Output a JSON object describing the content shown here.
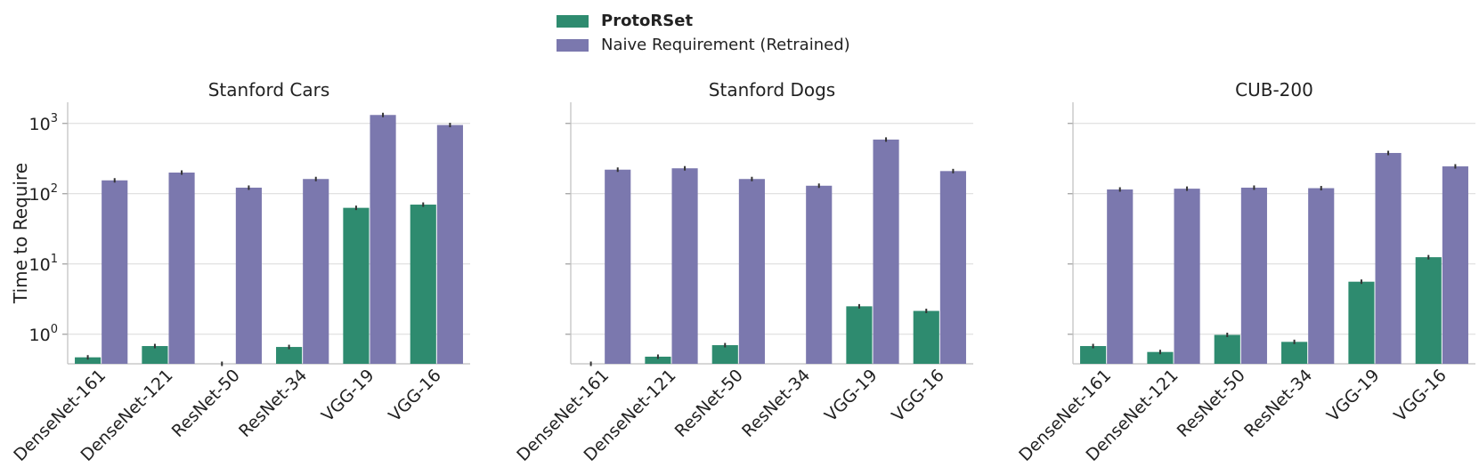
{
  "colors": {
    "protorset": "#2e8b6f",
    "naive": "#7b78ae",
    "grid": "#d9d9d9",
    "axis": "#bfbfbf",
    "errbar": "#333333"
  },
  "legend": [
    {
      "label": "ProtoRSet",
      "color": "#2e8b6f",
      "bold": true
    },
    {
      "label": "Naive Requirement (Retrained)",
      "color": "#7b78ae",
      "bold": false
    }
  ],
  "chart_data": [
    {
      "type": "bar",
      "title": "Stanford Cars",
      "ylabel": "Time to Require",
      "yscale": "log",
      "ylim": [
        0.38,
        2000
      ],
      "yticks": [
        1,
        10,
        100,
        1000
      ],
      "categories": [
        "DenseNet-161",
        "DenseNet-121",
        "ResNet-50",
        "ResNet-34",
        "VGG-19",
        "VGG-16"
      ],
      "series": [
        {
          "name": "ProtoRSet",
          "values": [
            0.47,
            0.68,
            0.38,
            0.66,
            63,
            70
          ]
        },
        {
          "name": "Naive Requirement (Retrained)",
          "values": [
            155,
            200,
            122,
            162,
            1320,
            950
          ]
        }
      ]
    },
    {
      "type": "bar",
      "title": "Stanford Dogs",
      "ylabel": "",
      "yscale": "log",
      "ylim": [
        0.38,
        2000
      ],
      "yticks": [
        1,
        10,
        100,
        1000
      ],
      "categories": [
        "DenseNet-161",
        "DenseNet-121",
        "ResNet-50",
        "ResNet-34",
        "VGG-19",
        "VGG-16"
      ],
      "series": [
        {
          "name": "ProtoRSet",
          "values": [
            0.38,
            0.48,
            0.7,
            null,
            2.5,
            2.15
          ]
        },
        {
          "name": "Naive Requirement (Retrained)",
          "values": [
            220,
            230,
            162,
            130,
            590,
            210
          ]
        }
      ]
    },
    {
      "type": "bar",
      "title": "CUB-200",
      "ylabel": "",
      "yscale": "log",
      "ylim": [
        0.38,
        2000
      ],
      "yticks": [
        1,
        10,
        100,
        1000
      ],
      "categories": [
        "DenseNet-161",
        "DenseNet-121",
        "ResNet-50",
        "ResNet-34",
        "VGG-19",
        "VGG-16"
      ],
      "series": [
        {
          "name": "ProtoRSet",
          "values": [
            0.68,
            0.56,
            0.98,
            0.78,
            5.6,
            12.5
          ]
        },
        {
          "name": "Naive Requirement (Retrained)",
          "values": [
            115,
            118,
            122,
            120,
            380,
            245
          ]
        }
      ]
    }
  ]
}
